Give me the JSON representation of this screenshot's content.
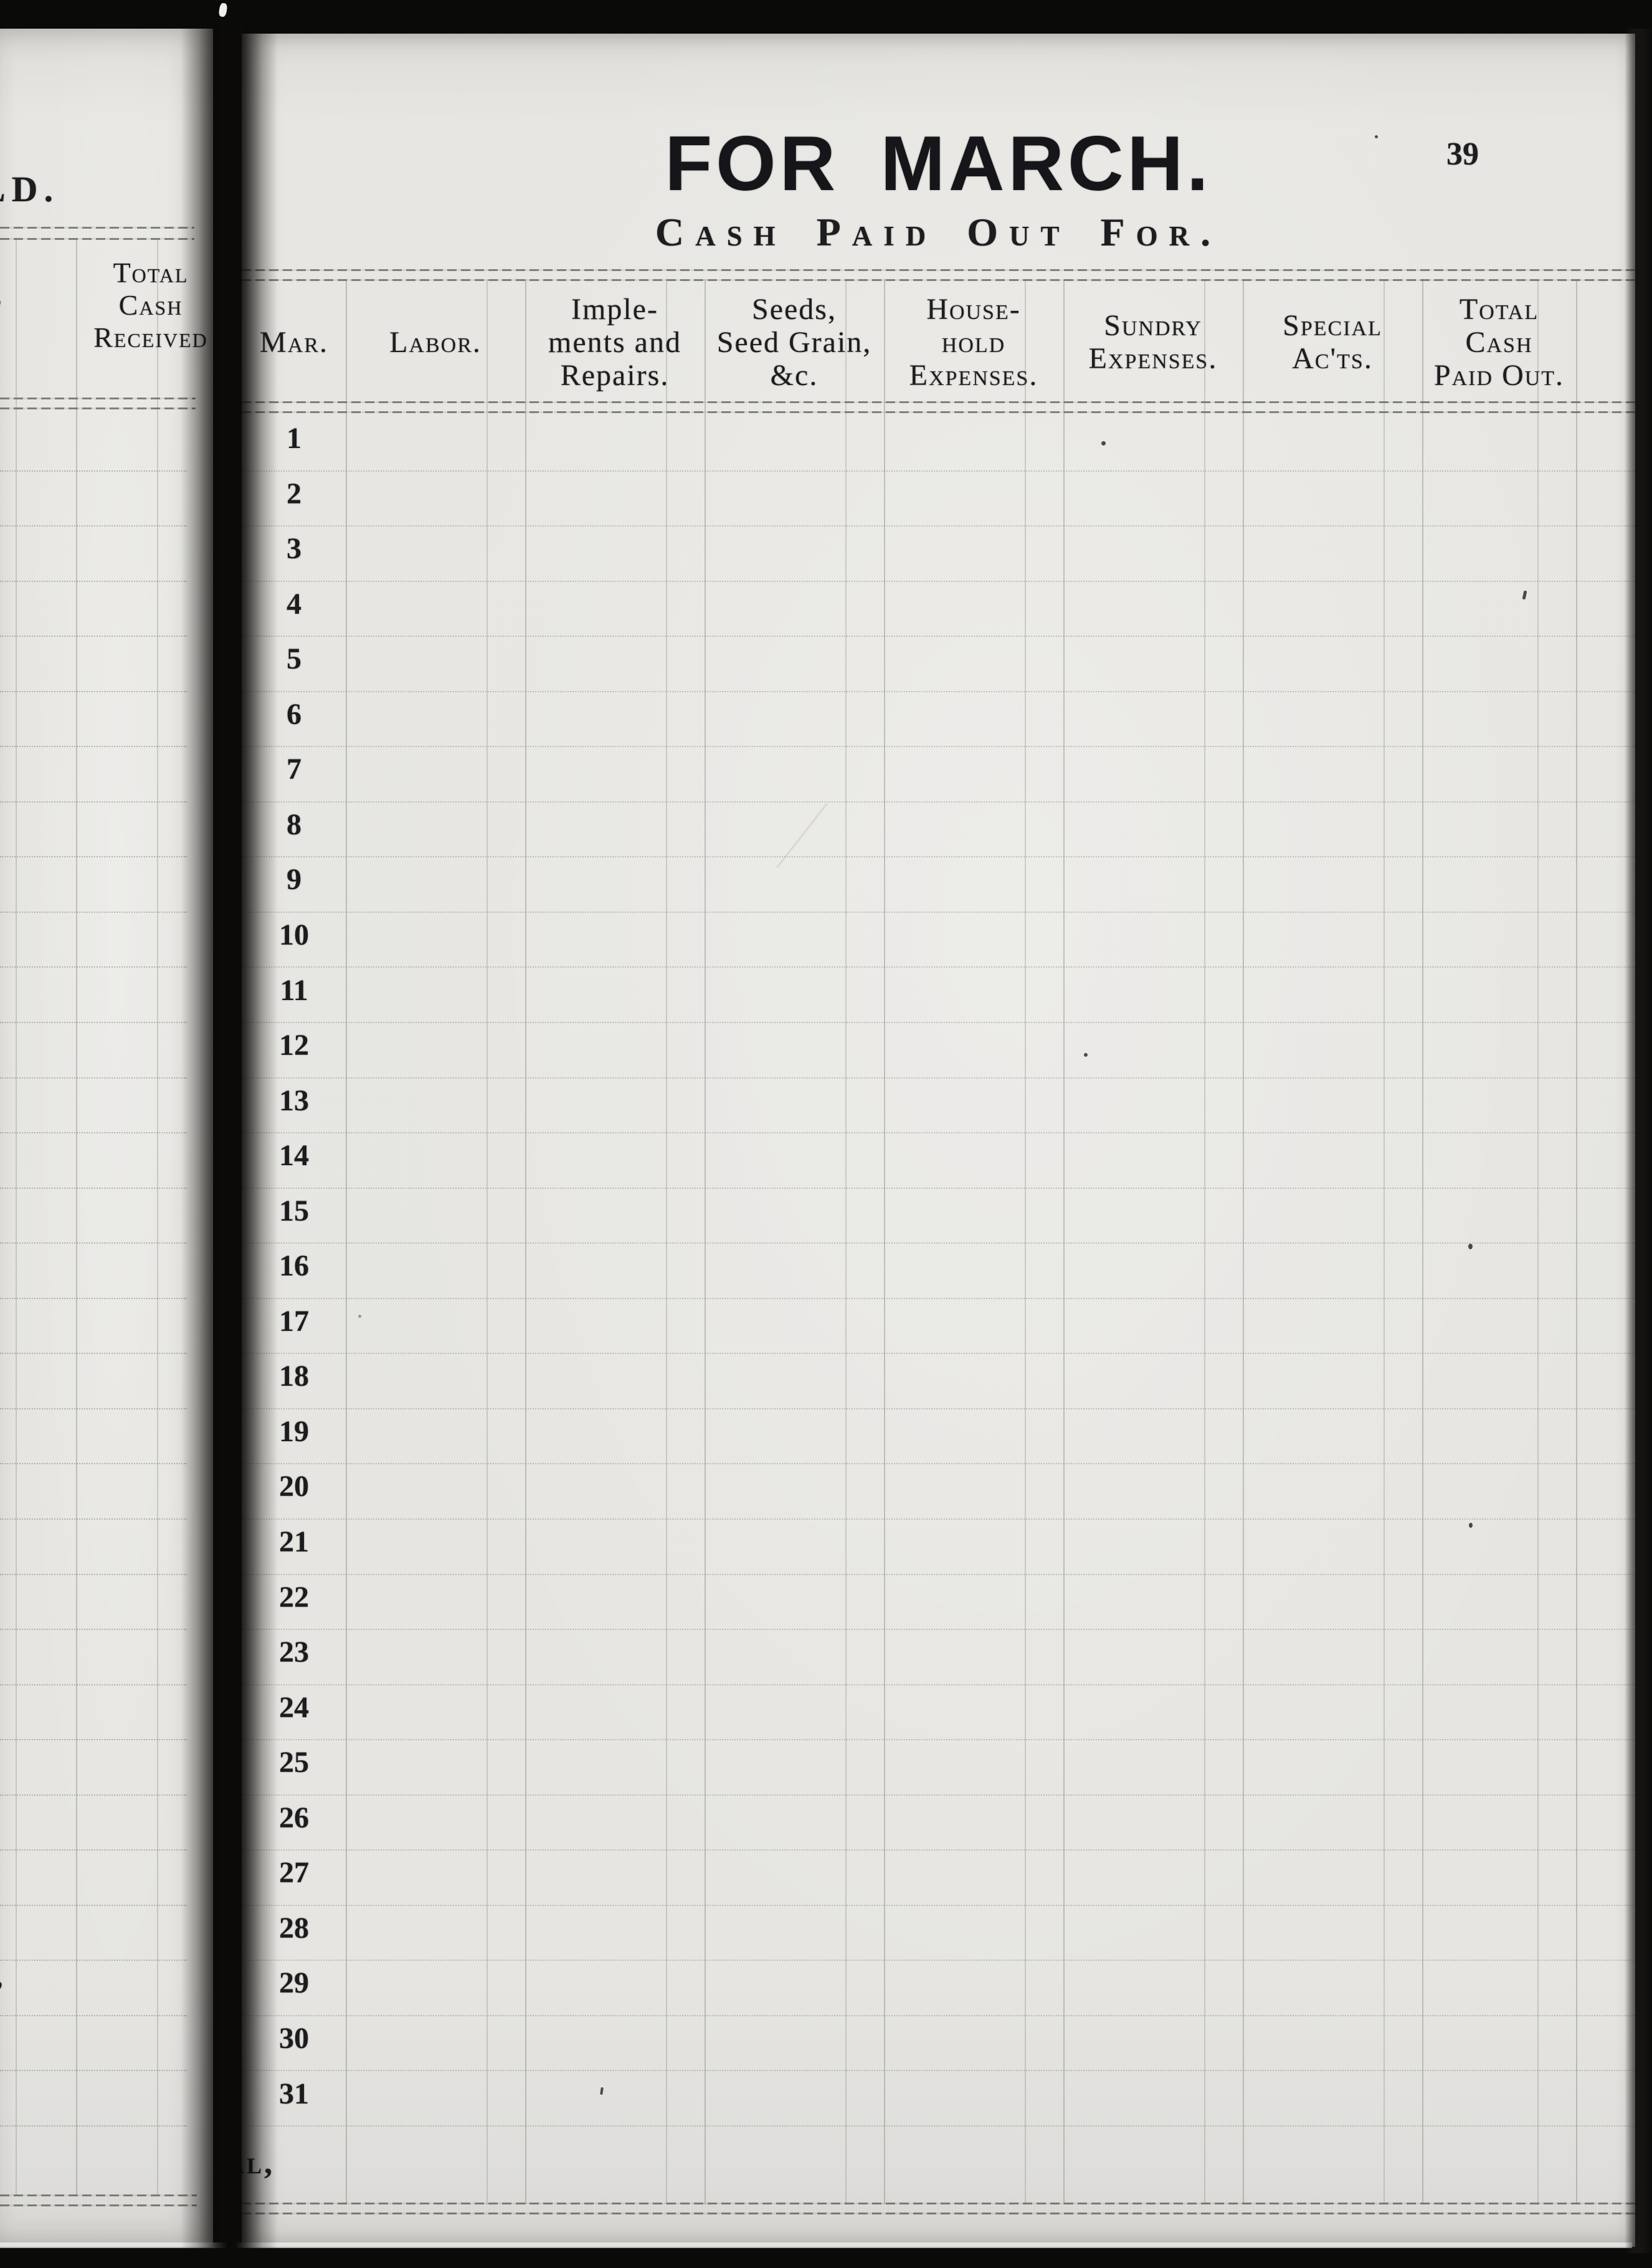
{
  "scan": {
    "left_page": {
      "title_fragment": "LD.",
      "edge_mark_top": ",",
      "edge_mark_bottom": ",",
      "column_header_lines": [
        "Total",
        "Cash",
        "Received"
      ]
    },
    "right_page": {
      "page_number": "39",
      "title": "FOR MARCH.",
      "subtitle": "Cash Paid Out For.",
      "table": {
        "month_label": "Mar.",
        "columns": [
          {
            "lines": [
              "Labor."
            ]
          },
          {
            "lines": [
              "Imple-",
              "ments and",
              "Repairs."
            ]
          },
          {
            "lines": [
              "Seeds,",
              "Seed Grain,",
              "&c."
            ]
          },
          {
            "lines": [
              "House-",
              "hold",
              "Expenses."
            ]
          },
          {
            "lines": [
              "Sundry",
              "Expenses."
            ]
          },
          {
            "lines": [
              "Special",
              "Ac'ts."
            ]
          },
          {
            "lines": [
              "Total",
              "Cash",
              "Paid Out."
            ]
          }
        ],
        "day_numbers": [
          "1",
          "2",
          "3",
          "4",
          "5",
          "6",
          "7",
          "8",
          "9",
          "10",
          "11",
          "12",
          "13",
          "14",
          "15",
          "16",
          "17",
          "18",
          "19",
          "20",
          "21",
          "22",
          "23",
          "24",
          "25",
          "26",
          "27",
          "28",
          "29",
          "30",
          "31"
        ],
        "total_row_label": "Total,"
      }
    },
    "colors": {
      "paper": "#e6e5e1",
      "ink": "#1d1c1f",
      "rule_faint": "#666c5c",
      "background": "#0a0a09"
    }
  }
}
